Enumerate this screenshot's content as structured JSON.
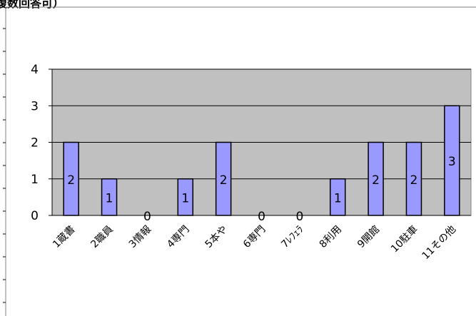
{
  "chart_data": {
    "type": "bar",
    "title": "複数回答可）",
    "categories": [
      "1蔵書",
      "2職員",
      "3情報",
      "4専門",
      "5本や",
      "6専門",
      "7ﾚﾌｪﾗ",
      "8利用",
      "9開館",
      "10駐車",
      "11その他"
    ],
    "series": [
      {
        "values": [
          2,
          1,
          0,
          1,
          2,
          0,
          0,
          1,
          2,
          2,
          3
        ]
      }
    ],
    "data_labels": [
      "2",
      "1",
      "0",
      "1",
      "2",
      "0",
      "0",
      "1",
      "2",
      "2",
      "3"
    ],
    "yticks": [
      "0",
      "1",
      "2",
      "3",
      "4"
    ],
    "ylim": [
      0,
      4
    ],
    "xlabel": "",
    "ylabel": "",
    "grid": true,
    "legend": "none",
    "colors": {
      "plot_area": "#c0c0c0",
      "bar_fill": "#9999ff",
      "bar_stroke": "#000000",
      "frame": "#808080"
    }
  }
}
